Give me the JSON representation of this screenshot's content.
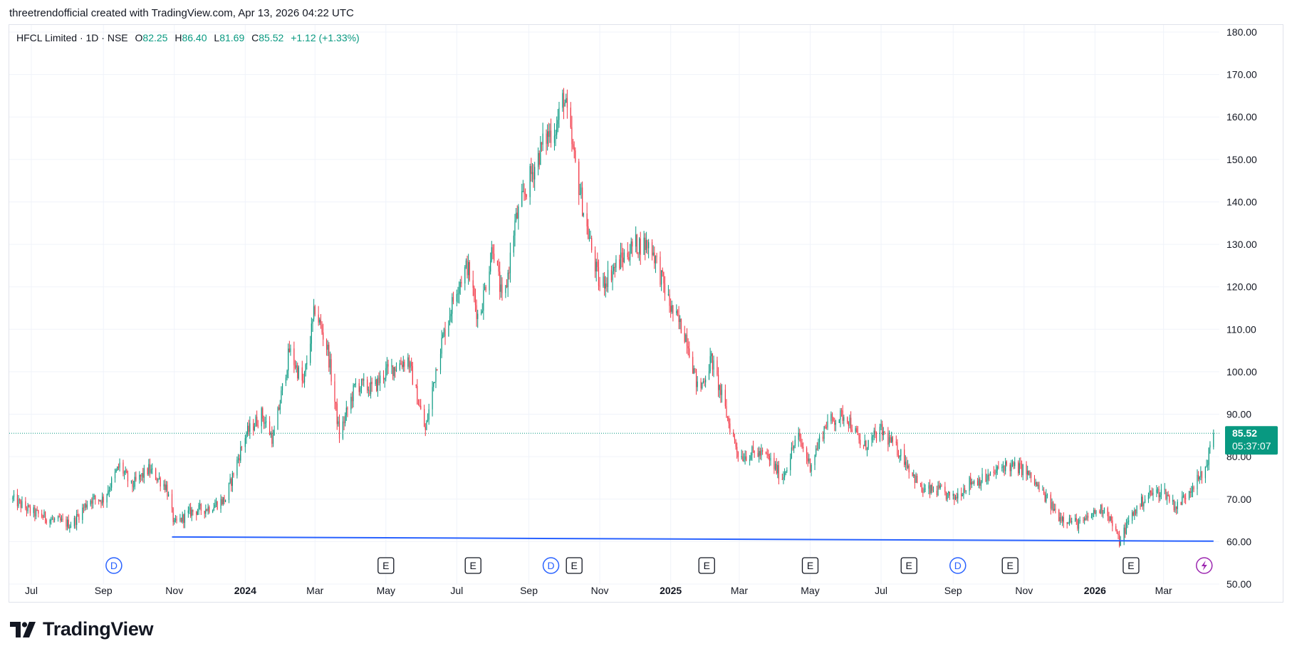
{
  "caption": "threetrendofficial created with TradingView.com, Apr 13, 2026 04:22 UTC",
  "brand": {
    "name": "TradingView",
    "logo_icon": "tradingview-logo-icon"
  },
  "colors": {
    "up": "#089981",
    "down": "#f23645",
    "trendline": "#2962ff",
    "price_line": "#089981",
    "dividend": "#2962ff",
    "earnings": "#131722",
    "split": "#9c27b0"
  },
  "chart_data": {
    "type": "candlestick",
    "title": "HFCL Limited · 1D · NSE",
    "ohlc": {
      "o_label": "O",
      "o": "82.25",
      "h_label": "H",
      "h": "86.40",
      "l_label": "L",
      "l": "81.69",
      "c_label": "C",
      "c": "85.52",
      "change": "+1.12 (+1.33%)"
    },
    "ylim": [
      50,
      180
    ],
    "y_ticks": [
      "50.00",
      "60.00",
      "70.00",
      "80.00",
      "90.00",
      "100.00",
      "110.00",
      "120.00",
      "130.00",
      "140.00",
      "150.00",
      "160.00",
      "170.00",
      "180.00"
    ],
    "x_ticks": [
      {
        "label": "Jul",
        "date": "2023-07-01"
      },
      {
        "label": "Sep",
        "date": "2023-09-01"
      },
      {
        "label": "Nov",
        "date": "2023-11-01"
      },
      {
        "label": "2024",
        "date": "2024-01-01",
        "year": true
      },
      {
        "label": "Mar",
        "date": "2024-03-01"
      },
      {
        "label": "May",
        "date": "2024-05-01"
      },
      {
        "label": "Jul",
        "date": "2024-07-01"
      },
      {
        "label": "Sep",
        "date": "2024-09-01"
      },
      {
        "label": "Nov",
        "date": "2024-11-01"
      },
      {
        "label": "2025",
        "date": "2025-01-01",
        "year": true
      },
      {
        "label": "Mar",
        "date": "2025-03-01"
      },
      {
        "label": "May",
        "date": "2025-05-01"
      },
      {
        "label": "Jul",
        "date": "2025-07-01"
      },
      {
        "label": "Sep",
        "date": "2025-09-01"
      },
      {
        "label": "Nov",
        "date": "2025-11-01"
      },
      {
        "label": "2026",
        "date": "2026-01-01",
        "year": true
      },
      {
        "label": "Mar",
        "date": "2026-03-01"
      }
    ],
    "price_path": [
      [
        "2023-06-15",
        70
      ],
      [
        "2023-07-01",
        67
      ],
      [
        "2023-07-20",
        65
      ],
      [
        "2023-08-05",
        64
      ],
      [
        "2023-08-20",
        70
      ],
      [
        "2023-09-01",
        70
      ],
      [
        "2023-09-15",
        78
      ],
      [
        "2023-09-25",
        73
      ],
      [
        "2023-10-10",
        77
      ],
      [
        "2023-10-25",
        73
      ],
      [
        "2023-11-01",
        64
      ],
      [
        "2023-11-15",
        67
      ],
      [
        "2023-12-01",
        68
      ],
      [
        "2023-12-15",
        70
      ],
      [
        "2024-01-01",
        85
      ],
      [
        "2024-01-15",
        90
      ],
      [
        "2024-01-25",
        84
      ],
      [
        "2024-02-08",
        105
      ],
      [
        "2024-02-20",
        97
      ],
      [
        "2024-03-01",
        115
      ],
      [
        "2024-03-12",
        105
      ],
      [
        "2024-03-22",
        85
      ],
      [
        "2024-04-05",
        97
      ],
      [
        "2024-04-20",
        96
      ],
      [
        "2024-05-01",
        100
      ],
      [
        "2024-05-20",
        103
      ],
      [
        "2024-06-04",
        86
      ],
      [
        "2024-06-15",
        104
      ],
      [
        "2024-07-01",
        120
      ],
      [
        "2024-07-10",
        125
      ],
      [
        "2024-07-20",
        112
      ],
      [
        "2024-08-01",
        130
      ],
      [
        "2024-08-10",
        115
      ],
      [
        "2024-08-20",
        135
      ],
      [
        "2024-09-01",
        145
      ],
      [
        "2024-09-15",
        155
      ],
      [
        "2024-09-25",
        158
      ],
      [
        "2024-10-01",
        165
      ],
      [
        "2024-10-10",
        150
      ],
      [
        "2024-10-20",
        135
      ],
      [
        "2024-11-01",
        120
      ],
      [
        "2024-11-15",
        125
      ],
      [
        "2024-12-01",
        130
      ],
      [
        "2024-12-15",
        130
      ],
      [
        "2025-01-01",
        115
      ],
      [
        "2025-01-15",
        108
      ],
      [
        "2025-01-25",
        95
      ],
      [
        "2025-02-05",
        103
      ],
      [
        "2025-02-20",
        88
      ],
      [
        "2025-03-01",
        80
      ],
      [
        "2025-03-15",
        81
      ],
      [
        "2025-03-25",
        80
      ],
      [
        "2025-04-07",
        75
      ],
      [
        "2025-04-20",
        85
      ],
      [
        "2025-05-01",
        78
      ],
      [
        "2025-05-15",
        88
      ],
      [
        "2025-06-01",
        90
      ],
      [
        "2025-06-15",
        82
      ],
      [
        "2025-07-01",
        86
      ],
      [
        "2025-07-20",
        80
      ],
      [
        "2025-08-05",
        72
      ],
      [
        "2025-08-20",
        72
      ],
      [
        "2025-09-01",
        70
      ],
      [
        "2025-09-15",
        74
      ],
      [
        "2025-10-01",
        75
      ],
      [
        "2025-10-15",
        78
      ],
      [
        "2025-11-01",
        77
      ],
      [
        "2025-11-15",
        72
      ],
      [
        "2025-12-01",
        66
      ],
      [
        "2025-12-20",
        64
      ],
      [
        "2026-01-01",
        67
      ],
      [
        "2026-01-10",
        68
      ],
      [
        "2026-01-22",
        60
      ],
      [
        "2026-02-01",
        66
      ],
      [
        "2026-02-15",
        71
      ],
      [
        "2026-03-01",
        72
      ],
      [
        "2026-03-12",
        68
      ],
      [
        "2026-03-25",
        73
      ],
      [
        "2026-04-05",
        76
      ],
      [
        "2026-04-13",
        85.52
      ]
    ],
    "last_date": "2026-04-13",
    "last_price": "85.52",
    "countdown": "05:37:07",
    "trendline": {
      "start": [
        "2023-10-30",
        61.1
      ],
      "end": [
        "2026-04-13",
        60.1
      ]
    },
    "events": [
      {
        "type": "D",
        "date": "2023-09-10"
      },
      {
        "type": "E",
        "date": "2024-05-01"
      },
      {
        "type": "E",
        "date": "2024-07-15"
      },
      {
        "type": "D",
        "date": "2024-09-20"
      },
      {
        "type": "E",
        "date": "2024-10-10"
      },
      {
        "type": "E",
        "date": "2025-02-01"
      },
      {
        "type": "E",
        "date": "2025-05-01"
      },
      {
        "type": "E",
        "date": "2025-07-25"
      },
      {
        "type": "D",
        "date": "2025-09-05"
      },
      {
        "type": "E",
        "date": "2025-10-20"
      },
      {
        "type": "E",
        "date": "2026-02-01"
      },
      {
        "type": "split",
        "date": "2026-04-05",
        "icon": "lightning-icon"
      }
    ]
  }
}
